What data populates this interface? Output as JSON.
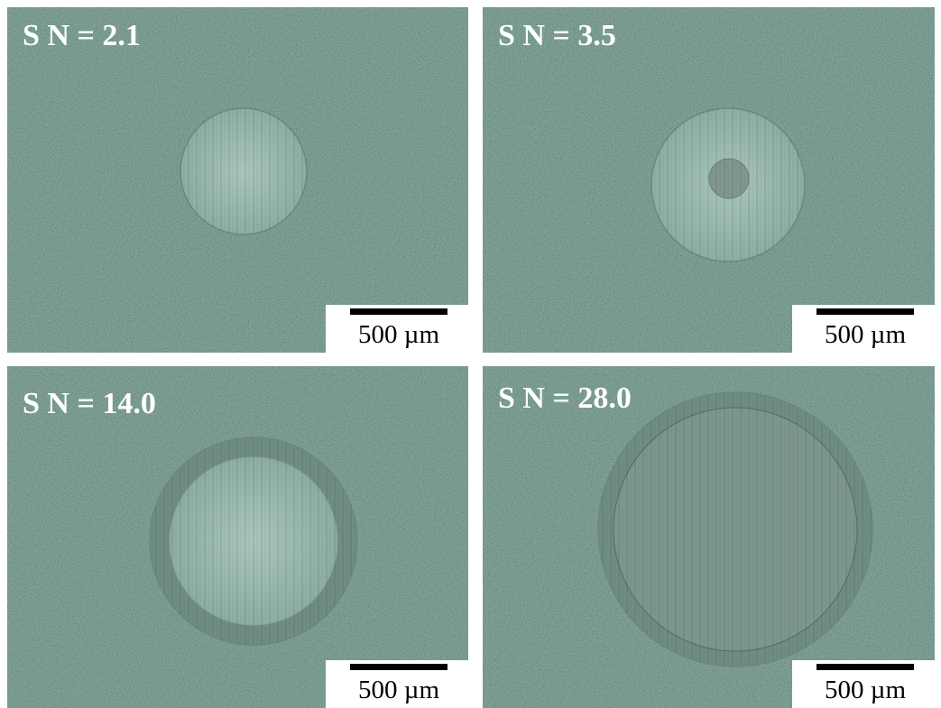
{
  "panels": [
    {
      "label": "S N = 2.1",
      "scale_bar": "500 µm"
    },
    {
      "label": "S N = 3.5",
      "scale_bar": "500 µm"
    },
    {
      "label": "S N = 14.0",
      "scale_bar": "500 µm"
    },
    {
      "label": "S N = 28.0",
      "scale_bar": "500 µm"
    }
  ]
}
